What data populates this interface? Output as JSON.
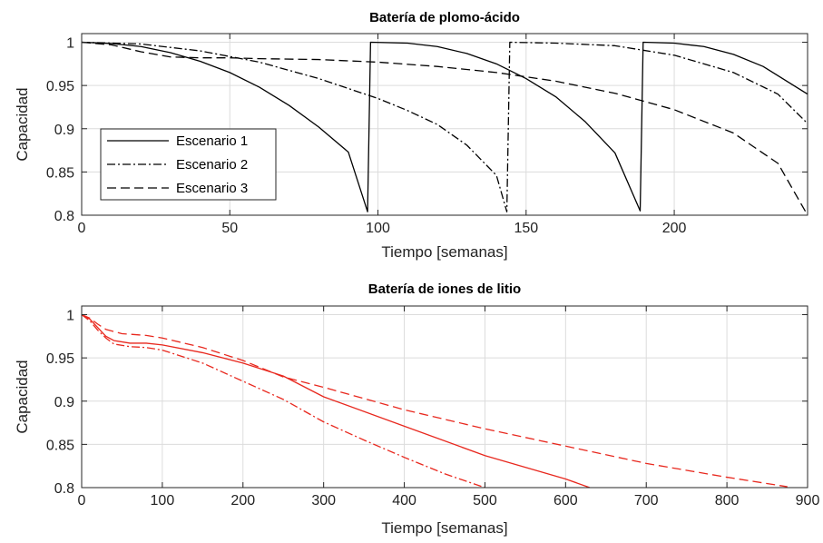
{
  "chart_data": [
    {
      "type": "line",
      "title": "Batería de plomo-ácido",
      "xlabel": "Tiempo [semanas]",
      "ylabel": "Capacidad",
      "xlim": [
        0,
        245
      ],
      "ylim": [
        0.8,
        1.01
      ],
      "xticks": [
        0,
        50,
        100,
        150,
        200
      ],
      "yticks": [
        0.8,
        0.85,
        0.9,
        0.95,
        1
      ],
      "xtick_labels": [
        "0",
        "50",
        "100",
        "150",
        "200"
      ],
      "ytick_labels": [
        "0.8",
        "0.85",
        "0.9",
        "0.95",
        "1"
      ],
      "grid": true,
      "legend": {
        "location": "lower-left",
        "entries": [
          "Escenario 1",
          "Escenario 2",
          "Escenario 3"
        ]
      },
      "series": [
        {
          "name": "Escenario 1",
          "color": "#000000",
          "dash": "solid",
          "points": [
            [
              0,
              1
            ],
            [
              10,
              0.9985
            ],
            [
              20,
              0.995
            ],
            [
              30,
              0.988
            ],
            [
              40,
              0.978
            ],
            [
              50,
              0.965
            ],
            [
              60,
              0.948
            ],
            [
              70,
              0.927
            ],
            [
              80,
              0.902
            ],
            [
              90,
              0.873
            ],
            [
              96.5,
              0.804
            ],
            [
              97.5,
              1
            ],
            [
              110,
              0.999
            ],
            [
              120,
              0.995
            ],
            [
              130,
              0.987
            ],
            [
              140,
              0.975
            ],
            [
              150,
              0.958
            ],
            [
              160,
              0.937
            ],
            [
              170,
              0.908
            ],
            [
              180,
              0.872
            ],
            [
              188.5,
              0.805
            ],
            [
              189.5,
              1
            ],
            [
              200,
              0.999
            ],
            [
              210,
              0.995
            ],
            [
              220,
              0.986
            ],
            [
              230,
              0.972
            ],
            [
              245,
              0.94
            ]
          ]
        },
        {
          "name": "Escenario 2",
          "color": "#000000",
          "dash": "dashdot",
          "points": [
            [
              0,
              1
            ],
            [
              20,
              0.998
            ],
            [
              40,
              0.99
            ],
            [
              60,
              0.977
            ],
            [
              80,
              0.958
            ],
            [
              100,
              0.935
            ],
            [
              110,
              0.921
            ],
            [
              120,
              0.905
            ],
            [
              130,
              0.881
            ],
            [
              140,
              0.846
            ],
            [
              143.5,
              0.804
            ],
            [
              144.5,
              1
            ],
            [
              160,
              0.999
            ],
            [
              180,
              0.996
            ],
            [
              200,
              0.985
            ],
            [
              220,
              0.965
            ],
            [
              235,
              0.94
            ],
            [
              245,
              0.906
            ]
          ]
        },
        {
          "name": "Escenario 3",
          "color": "#000000",
          "dash": "dashed",
          "points": [
            [
              0,
              1
            ],
            [
              10,
              0.997
            ],
            [
              20,
              0.989
            ],
            [
              30,
              0.983
            ],
            [
              40,
              0.982
            ],
            [
              50,
              0.982
            ],
            [
              60,
              0.981
            ],
            [
              80,
              0.98
            ],
            [
              100,
              0.977
            ],
            [
              120,
              0.972
            ],
            [
              140,
              0.965
            ],
            [
              160,
              0.955
            ],
            [
              180,
              0.941
            ],
            [
              200,
              0.922
            ],
            [
              220,
              0.895
            ],
            [
              235,
              0.86
            ],
            [
              245,
              0.8
            ]
          ]
        }
      ]
    },
    {
      "type": "line",
      "title": "Batería de iones de litio",
      "xlabel": "Tiempo [semanas]",
      "ylabel": "Capacidad",
      "xlim": [
        0,
        900
      ],
      "ylim": [
        0.8,
        1.01
      ],
      "xticks": [
        0,
        100,
        200,
        300,
        400,
        500,
        600,
        700,
        800,
        900
      ],
      "yticks": [
        0.8,
        0.85,
        0.9,
        0.95,
        1
      ],
      "xtick_labels": [
        "0",
        "100",
        "200",
        "300",
        "400",
        "500",
        "600",
        "700",
        "800",
        "900"
      ],
      "ytick_labels": [
        "0.8",
        "0.85",
        "0.9",
        "0.95",
        "1"
      ],
      "grid": true,
      "series": [
        {
          "color": "#e8281e",
          "dash": "solid",
          "points": [
            [
              0,
              1
            ],
            [
              10,
              0.995
            ],
            [
              20,
              0.985
            ],
            [
              30,
              0.975
            ],
            [
              40,
              0.97
            ],
            [
              60,
              0.967
            ],
            [
              80,
              0.967
            ],
            [
              100,
              0.965
            ],
            [
              150,
              0.956
            ],
            [
              200,
              0.944
            ],
            [
              250,
              0.929
            ],
            [
              300,
              0.905
            ],
            [
              400,
              0.871
            ],
            [
              500,
              0.837
            ],
            [
              600,
              0.81
            ],
            [
              630,
              0.8
            ]
          ]
        },
        {
          "color": "#e8281e",
          "dash": "dashdot",
          "points": [
            [
              0,
              1
            ],
            [
              10,
              0.993
            ],
            [
              20,
              0.982
            ],
            [
              30,
              0.973
            ],
            [
              40,
              0.966
            ],
            [
              60,
              0.963
            ],
            [
              80,
              0.962
            ],
            [
              100,
              0.959
            ],
            [
              150,
              0.944
            ],
            [
              200,
              0.923
            ],
            [
              250,
              0.902
            ],
            [
              300,
              0.876
            ],
            [
              350,
              0.855
            ],
            [
              400,
              0.835
            ],
            [
              450,
              0.816
            ],
            [
              500,
              0.8
            ]
          ]
        },
        {
          "color": "#e8281e",
          "dash": "dashed",
          "points": [
            [
              0,
              1
            ],
            [
              10,
              0.996
            ],
            [
              20,
              0.989
            ],
            [
              30,
              0.983
            ],
            [
              50,
              0.978
            ],
            [
              80,
              0.976
            ],
            [
              100,
              0.973
            ],
            [
              150,
              0.962
            ],
            [
              200,
              0.947
            ],
            [
              250,
              0.928
            ],
            [
              300,
              0.916
            ],
            [
              400,
              0.89
            ],
            [
              500,
              0.868
            ],
            [
              600,
              0.848
            ],
            [
              700,
              0.828
            ],
            [
              800,
              0.812
            ],
            [
              875,
              0.801
            ]
          ]
        }
      ]
    }
  ]
}
